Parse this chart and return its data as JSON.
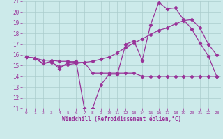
{
  "xlabel": "Windchill (Refroidissement éolien,°C)",
  "bg_color": "#cceaea",
  "grid_color": "#aacccc",
  "line_color": "#993399",
  "xlim": [
    -0.5,
    23.5
  ],
  "ylim": [
    11,
    21
  ],
  "xticks": [
    0,
    1,
    2,
    3,
    4,
    5,
    6,
    7,
    8,
    9,
    10,
    11,
    12,
    13,
    14,
    15,
    16,
    17,
    18,
    19,
    20,
    21,
    22,
    23
  ],
  "yticks": [
    11,
    12,
    13,
    14,
    15,
    16,
    17,
    18,
    19,
    20,
    21
  ],
  "line1_x": [
    0,
    1,
    2,
    3,
    4,
    5,
    6,
    7,
    8,
    9,
    10,
    11,
    12,
    13,
    14,
    15,
    16,
    17,
    18,
    19,
    20,
    21,
    22,
    23
  ],
  "line1_y": [
    15.8,
    15.7,
    15.2,
    15.4,
    14.7,
    15.3,
    15.4,
    11.0,
    11.0,
    13.2,
    14.2,
    14.2,
    17.0,
    17.3,
    15.5,
    18.8,
    20.9,
    20.3,
    20.4,
    19.3,
    18.4,
    17.1,
    15.9,
    14.0
  ],
  "line2_x": [
    0,
    1,
    2,
    3,
    4,
    5,
    6,
    7,
    8,
    9,
    10,
    11,
    12,
    13,
    14,
    15,
    16,
    17,
    18,
    19,
    20,
    21,
    22,
    23
  ],
  "line2_y": [
    15.8,
    15.7,
    15.5,
    15.5,
    15.4,
    15.4,
    15.3,
    15.3,
    14.3,
    14.3,
    14.3,
    14.3,
    14.3,
    14.3,
    14.0,
    14.0,
    14.0,
    14.0,
    14.0,
    14.0,
    14.0,
    14.0,
    14.0,
    14.0
  ],
  "line3_x": [
    0,
    1,
    2,
    3,
    4,
    5,
    6,
    7,
    8,
    9,
    10,
    11,
    12,
    13,
    14,
    15,
    16,
    17,
    18,
    19,
    20,
    21,
    22,
    23
  ],
  "line3_y": [
    15.8,
    15.7,
    15.2,
    15.3,
    14.9,
    15.1,
    15.2,
    15.3,
    15.4,
    15.6,
    15.8,
    16.2,
    16.7,
    17.1,
    17.5,
    17.9,
    18.3,
    18.5,
    18.9,
    19.2,
    19.3,
    18.5,
    17.0,
    16.0
  ],
  "figsize": [
    3.2,
    2.0
  ],
  "dpi": 100
}
